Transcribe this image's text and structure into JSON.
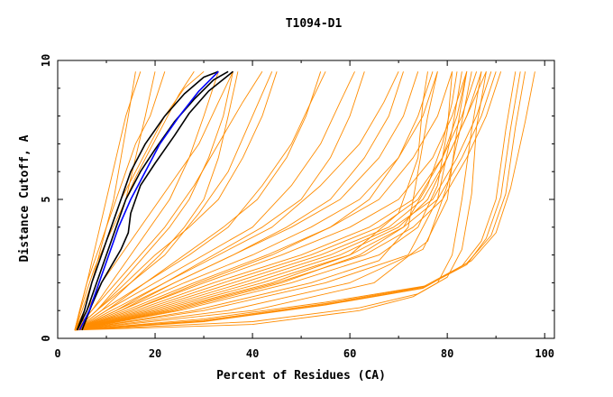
{
  "chart_data": {
    "type": "line",
    "title": "T1094-D1",
    "xlabel": "Percent of Residues (CA)",
    "ylabel": "Distance Cutoff, A",
    "xlim": [
      0,
      102
    ],
    "ylim": [
      0,
      10
    ],
    "x_ticks": [
      "0",
      "20",
      "40",
      "60",
      "80",
      "100"
    ],
    "y_ticks": [
      "0",
      "5",
      "10"
    ],
    "grid": false,
    "colors": {
      "models": "#ff8c00",
      "highlight_dark": "#000000",
      "highlight_blue": "#0000ff"
    },
    "series": [
      {
        "group": "highlight",
        "color": "#000000",
        "x": [
          4,
          6,
          8,
          10,
          12,
          14,
          17,
          20,
          24,
          28,
          32,
          35
        ],
        "y": [
          0.3,
          1,
          2,
          3,
          4,
          5,
          6,
          6.8,
          7.8,
          8.6,
          9.3,
          9.6
        ]
      },
      {
        "group": "highlight",
        "color": "#000000",
        "x": [
          4,
          5.5,
          7,
          9,
          11,
          13,
          15,
          18,
          22,
          26,
          30,
          33
        ],
        "y": [
          0.3,
          1,
          2,
          3,
          4,
          5,
          6,
          7,
          8,
          8.8,
          9.4,
          9.6
        ]
      },
      {
        "group": "highlight",
        "color": "#000000",
        "x": [
          5,
          7,
          9,
          11,
          13,
          14.5,
          15,
          17,
          20,
          24,
          27,
          31,
          36
        ],
        "y": [
          0.3,
          1.2,
          2,
          2.6,
          3.2,
          3.8,
          4.5,
          5.5,
          6.3,
          7.3,
          8.1,
          8.9,
          9.6
        ]
      },
      {
        "group": "highlight",
        "color": "#0000ff",
        "x": [
          4.5,
          6.5,
          8.5,
          10.5,
          12.5,
          15,
          18,
          21,
          25,
          29,
          33
        ],
        "y": [
          0.3,
          1,
          2,
          3,
          4,
          5,
          6,
          7,
          8,
          8.9,
          9.6
        ]
      },
      {
        "group": "models",
        "color": "#ff8c00",
        "x": [
          3.5,
          5,
          7,
          9,
          11,
          13,
          16,
          19,
          22,
          26,
          30
        ],
        "y": [
          0.3,
          1,
          2,
          3,
          4,
          5,
          6,
          7,
          8,
          9,
          9.6
        ]
      },
      {
        "group": "models",
        "color": "#ff8c00",
        "x": [
          3.5,
          4.5,
          6,
          8,
          10,
          12,
          14,
          16,
          19,
          22
        ],
        "y": [
          0.3,
          1,
          2,
          3,
          4,
          5,
          6,
          7,
          8,
          9.6
        ]
      },
      {
        "group": "models",
        "color": "#ff8c00",
        "x": [
          3.5,
          5,
          7.5,
          10,
          13,
          16,
          19,
          22,
          25,
          28
        ],
        "y": [
          0.3,
          1.2,
          2.5,
          3.5,
          4.6,
          5.8,
          6.8,
          7.8,
          8.8,
          9.6
        ]
      },
      {
        "group": "models",
        "color": "#ff8c00",
        "x": [
          3.5,
          4.5,
          6,
          8,
          10,
          12,
          14,
          17
        ],
        "y": [
          0.3,
          1,
          2,
          3.5,
          5,
          6.5,
          8,
          9.6
        ]
      },
      {
        "group": "models",
        "color": "#ff8c00",
        "x": [
          3.5,
          6,
          9,
          13,
          17,
          21,
          25,
          29,
          33,
          36
        ],
        "y": [
          0.3,
          1,
          2,
          3,
          4,
          5,
          6,
          7,
          8.5,
          9.6
        ]
      },
      {
        "group": "models",
        "color": "#ff8c00",
        "x": [
          3.5,
          7,
          12,
          17,
          22,
          28,
          33,
          38,
          42
        ],
        "y": [
          0.3,
          1,
          2,
          3,
          4,
          5.5,
          7,
          8.5,
          9.6
        ]
      },
      {
        "group": "models",
        "color": "#ff8c00",
        "x": [
          3.5,
          8,
          15,
          22,
          29,
          35,
          40,
          44
        ],
        "y": [
          0.3,
          1,
          2,
          3,
          4.5,
          6,
          8,
          9.6
        ]
      },
      {
        "group": "models",
        "color": "#ff8c00",
        "x": [
          3.5,
          9,
          18,
          27,
          35,
          42,
          48,
          52,
          55
        ],
        "y": [
          0.3,
          1,
          2,
          3,
          4,
          5.5,
          7,
          8.5,
          9.6
        ]
      },
      {
        "group": "models",
        "color": "#ff8c00",
        "x": [
          3.5,
          10,
          20,
          30,
          40,
          48,
          54,
          58,
          61
        ],
        "y": [
          0.3,
          1,
          2,
          3,
          4,
          5.5,
          7,
          8.5,
          9.6
        ]
      },
      {
        "group": "models",
        "color": "#ff8c00",
        "x": [
          3.5,
          11,
          22,
          33,
          44,
          54,
          62,
          67,
          70
        ],
        "y": [
          0.3,
          1,
          2,
          3,
          4,
          5.5,
          7,
          8.5,
          9.6
        ]
      },
      {
        "group": "models",
        "color": "#ff8c00",
        "x": [
          3.5,
          12,
          24,
          36,
          48,
          58,
          66,
          71,
          74
        ],
        "y": [
          0.3,
          1,
          2,
          3,
          4,
          5,
          6.5,
          8,
          9.6
        ]
      },
      {
        "group": "models",
        "color": "#ff8c00",
        "x": [
          3.5,
          13,
          26,
          40,
          52,
          62,
          70,
          75,
          78
        ],
        "y": [
          0.3,
          1,
          2,
          3,
          4,
          5,
          6.5,
          8,
          9.6
        ]
      },
      {
        "group": "models",
        "color": "#ff8c00",
        "x": [
          3.5,
          14,
          28,
          43,
          56,
          66,
          73,
          78,
          81
        ],
        "y": [
          0.3,
          1,
          2,
          3,
          4,
          5,
          6.5,
          8,
          9.6
        ]
      },
      {
        "group": "models",
        "color": "#ff8c00",
        "x": [
          3.5,
          15,
          30,
          46,
          60,
          70,
          77,
          81,
          84
        ],
        "y": [
          0.3,
          1,
          2,
          3,
          4,
          5,
          6.5,
          8,
          9.6
        ]
      },
      {
        "group": "models",
        "color": "#ff8c00",
        "x": [
          3.5,
          16,
          32,
          50,
          64,
          73,
          79,
          83,
          86
        ],
        "y": [
          0.3,
          1,
          2,
          3,
          4,
          5,
          6.5,
          8,
          9.6
        ]
      },
      {
        "group": "models",
        "color": "#ff8c00",
        "x": [
          3.5,
          17,
          34,
          52,
          66,
          74,
          79,
          82,
          84
        ],
        "y": [
          0.3,
          1,
          2,
          3,
          4,
          5,
          6.5,
          8,
          9.6
        ]
      },
      {
        "group": "models",
        "color": "#ff8c00",
        "x": [
          3.5,
          18,
          36,
          54,
          68,
          75,
          80,
          84,
          87
        ],
        "y": [
          0.3,
          1,
          2,
          3,
          4,
          5,
          6.5,
          8,
          9.6
        ]
      },
      {
        "group": "models",
        "color": "#ff8c00",
        "x": [
          3.5,
          20,
          40,
          58,
          70,
          76,
          80,
          84,
          88
        ],
        "y": [
          0.3,
          1,
          2,
          3,
          4,
          5,
          6.5,
          8,
          9.6
        ]
      },
      {
        "group": "models",
        "color": "#ff8c00",
        "x": [
          3.5,
          25,
          48,
          66,
          74,
          78,
          80,
          81
        ],
        "y": [
          0.3,
          1,
          2,
          3,
          4,
          5.5,
          7.5,
          9.6
        ]
      },
      {
        "group": "models",
        "color": "#ff8c00",
        "x": [
          3.5,
          30,
          55,
          72,
          78,
          81,
          83
        ],
        "y": [
          0.3,
          1,
          2,
          3,
          5,
          7.5,
          9.6
        ]
      },
      {
        "group": "models",
        "color": "#ff8c00",
        "x": [
          3.5,
          35,
          60,
          75,
          80,
          82,
          84
        ],
        "y": [
          0.3,
          1,
          2,
          3.2,
          5,
          7.5,
          9.6
        ]
      },
      {
        "group": "models",
        "color": "#ff8c00",
        "x": [
          3.5,
          40,
          65,
          76,
          80,
          83,
          85
        ],
        "y": [
          0.3,
          1,
          2,
          3.5,
          5.5,
          7.8,
          9.6
        ]
      },
      {
        "group": "models",
        "color": "#ff8c00",
        "x": [
          3.5,
          28,
          52,
          66,
          72,
          74,
          76,
          78
        ],
        "y": [
          0.3,
          1,
          2,
          2.8,
          4,
          6,
          8,
          9.6
        ]
      },
      {
        "group": "models",
        "color": "#ff8c00",
        "x": [
          3.5,
          22,
          44,
          60,
          70,
          74,
          75,
          76
        ],
        "y": [
          0.3,
          1,
          2,
          3,
          4.5,
          6.5,
          8.5,
          9.6
        ]
      },
      {
        "group": "models",
        "color": "#ff8c00",
        "x": [
          3.5,
          24,
          46,
          62,
          71,
          76,
          79,
          81,
          82
        ],
        "y": [
          0.3,
          1,
          2,
          3,
          4,
          5.5,
          7,
          8.5,
          9.6
        ]
      },
      {
        "group": "models",
        "color": "#ff8c00",
        "x": [
          3.5,
          19,
          38,
          56,
          69,
          77,
          82,
          86,
          89
        ],
        "y": [
          0.3,
          1,
          2,
          3,
          4,
          5,
          6.5,
          8,
          9.6
        ]
      },
      {
        "group": "models",
        "color": "#ff8c00",
        "x": [
          3.5,
          15,
          29,
          44,
          56,
          64,
          70,
          74,
          77
        ],
        "y": [
          0.3,
          1,
          2,
          3,
          4,
          5,
          6.5,
          8,
          9.6
        ]
      },
      {
        "group": "models",
        "color": "#ff8c00",
        "x": [
          3.5,
          21,
          42,
          60,
          71,
          78,
          83,
          87,
          90
        ],
        "y": [
          0.3,
          1,
          2,
          3,
          4,
          5,
          6.5,
          8,
          9.6
        ]
      },
      {
        "group": "models",
        "color": "#ff8c00",
        "x": [
          3.5,
          23,
          45,
          63,
          73,
          79,
          84,
          88,
          91
        ],
        "y": [
          0.3,
          1,
          2,
          3,
          4,
          5,
          6.5,
          8,
          9.6
        ]
      },
      {
        "group": "models",
        "color": "#ff8c00",
        "x": [
          3.5,
          8,
          13,
          18,
          23,
          27,
          31,
          34,
          36
        ],
        "y": [
          0.3,
          1,
          2,
          3,
          4,
          5,
          6.5,
          8,
          9.6
        ]
      },
      {
        "group": "models",
        "color": "#ff8c00",
        "x": [
          3.5,
          7,
          11,
          15,
          19,
          23,
          27,
          30,
          33
        ],
        "y": [
          0.3,
          1,
          2,
          3,
          4,
          5,
          6.5,
          8,
          9.6
        ]
      },
      {
        "group": "models",
        "color": "#ff8c00",
        "x": [
          3.5,
          9,
          15,
          21,
          26,
          30,
          33,
          35,
          37
        ],
        "y": [
          0.3,
          1,
          2,
          3,
          4,
          5,
          6.5,
          8,
          9.6
        ]
      },
      {
        "group": "models",
        "color": "#ff8c00",
        "x": [
          3.5,
          6,
          8,
          10,
          12,
          14,
          16,
          18,
          20
        ],
        "y": [
          0.3,
          1,
          2,
          3,
          4,
          5,
          6.5,
          8,
          9.6
        ]
      },
      {
        "group": "models",
        "color": "#ff8c00",
        "x": [
          3.5,
          5.5,
          7,
          8.5,
          10,
          11.5,
          13,
          14.5,
          16
        ],
        "y": [
          0.3,
          1,
          2,
          3,
          4,
          5,
          6.5,
          8,
          9.6
        ]
      },
      {
        "group": "models",
        "color": "#ff8c00",
        "x": [
          3.5,
          8,
          14,
          20,
          27,
          33,
          38,
          42,
          45
        ],
        "y": [
          0.3,
          1,
          2,
          3,
          4,
          5,
          6.5,
          8,
          9.6
        ]
      },
      {
        "group": "models",
        "color": "#ff8c00",
        "x": [
          3.5,
          10,
          18,
          26,
          34,
          41,
          47,
          51,
          54
        ],
        "y": [
          0.3,
          1,
          2,
          3,
          4,
          5,
          6.5,
          8,
          9.6
        ]
      },
      {
        "group": "models",
        "color": "#ff8c00",
        "x": [
          3.5,
          12,
          22,
          32,
          42,
          50,
          56,
          60,
          63
        ],
        "y": [
          0.3,
          1,
          2,
          3,
          4,
          5,
          6.5,
          8,
          9.6
        ]
      },
      {
        "group": "models",
        "color": "#ff8c00",
        "x": [
          3.5,
          13,
          24,
          36,
          47,
          56,
          63,
          68,
          71
        ],
        "y": [
          0.3,
          1,
          2,
          3,
          4,
          5,
          6.5,
          8,
          9.6
        ]
      },
      {
        "group": "models",
        "color": "#ff8c00",
        "x": [
          3.5,
          40,
          62,
          73,
          78,
          81,
          83,
          85,
          87
        ],
        "y": [
          0.3,
          0.5,
          1,
          1.5,
          2,
          3,
          5,
          7.5,
          9.6
        ]
      },
      {
        "group": "models",
        "color": "#ff8c00",
        "x": [
          3.5,
          40,
          62,
          74,
          80,
          83,
          85,
          86,
          88
        ],
        "y": [
          0.3,
          0.6,
          1.1,
          1.6,
          2.2,
          3.2,
          5.2,
          7.6,
          9.6
        ]
      },
      {
        "group": "models",
        "color": "#ff8c00",
        "x": [
          3.5,
          30,
          55,
          75,
          83,
          87,
          90,
          92,
          94
        ],
        "y": [
          0.3,
          0.6,
          1.2,
          1.8,
          2.6,
          3.5,
          5,
          7.5,
          9.6
        ]
      },
      {
        "group": "models",
        "color": "#ff8c00",
        "x": [
          3.5,
          30,
          55,
          75,
          84,
          89,
          92,
          94,
          96
        ],
        "y": [
          0.3,
          0.65,
          1.25,
          1.85,
          2.7,
          3.7,
          5.2,
          7.6,
          9.6
        ]
      },
      {
        "group": "models",
        "color": "#ff8c00",
        "x": [
          3.5,
          30,
          55,
          76,
          85,
          90,
          93,
          96,
          98
        ],
        "y": [
          0.3,
          0.7,
          1.3,
          1.9,
          2.8,
          3.8,
          5.4,
          7.8,
          9.6
        ]
      },
      {
        "group": "models",
        "color": "#ff8c00",
        "x": [
          3.5,
          30,
          55,
          75,
          84,
          88,
          91,
          93,
          95
        ],
        "y": [
          0.3,
          0.62,
          1.22,
          1.82,
          2.65,
          3.6,
          5.1,
          7.55,
          9.6
        ]
      }
    ]
  }
}
